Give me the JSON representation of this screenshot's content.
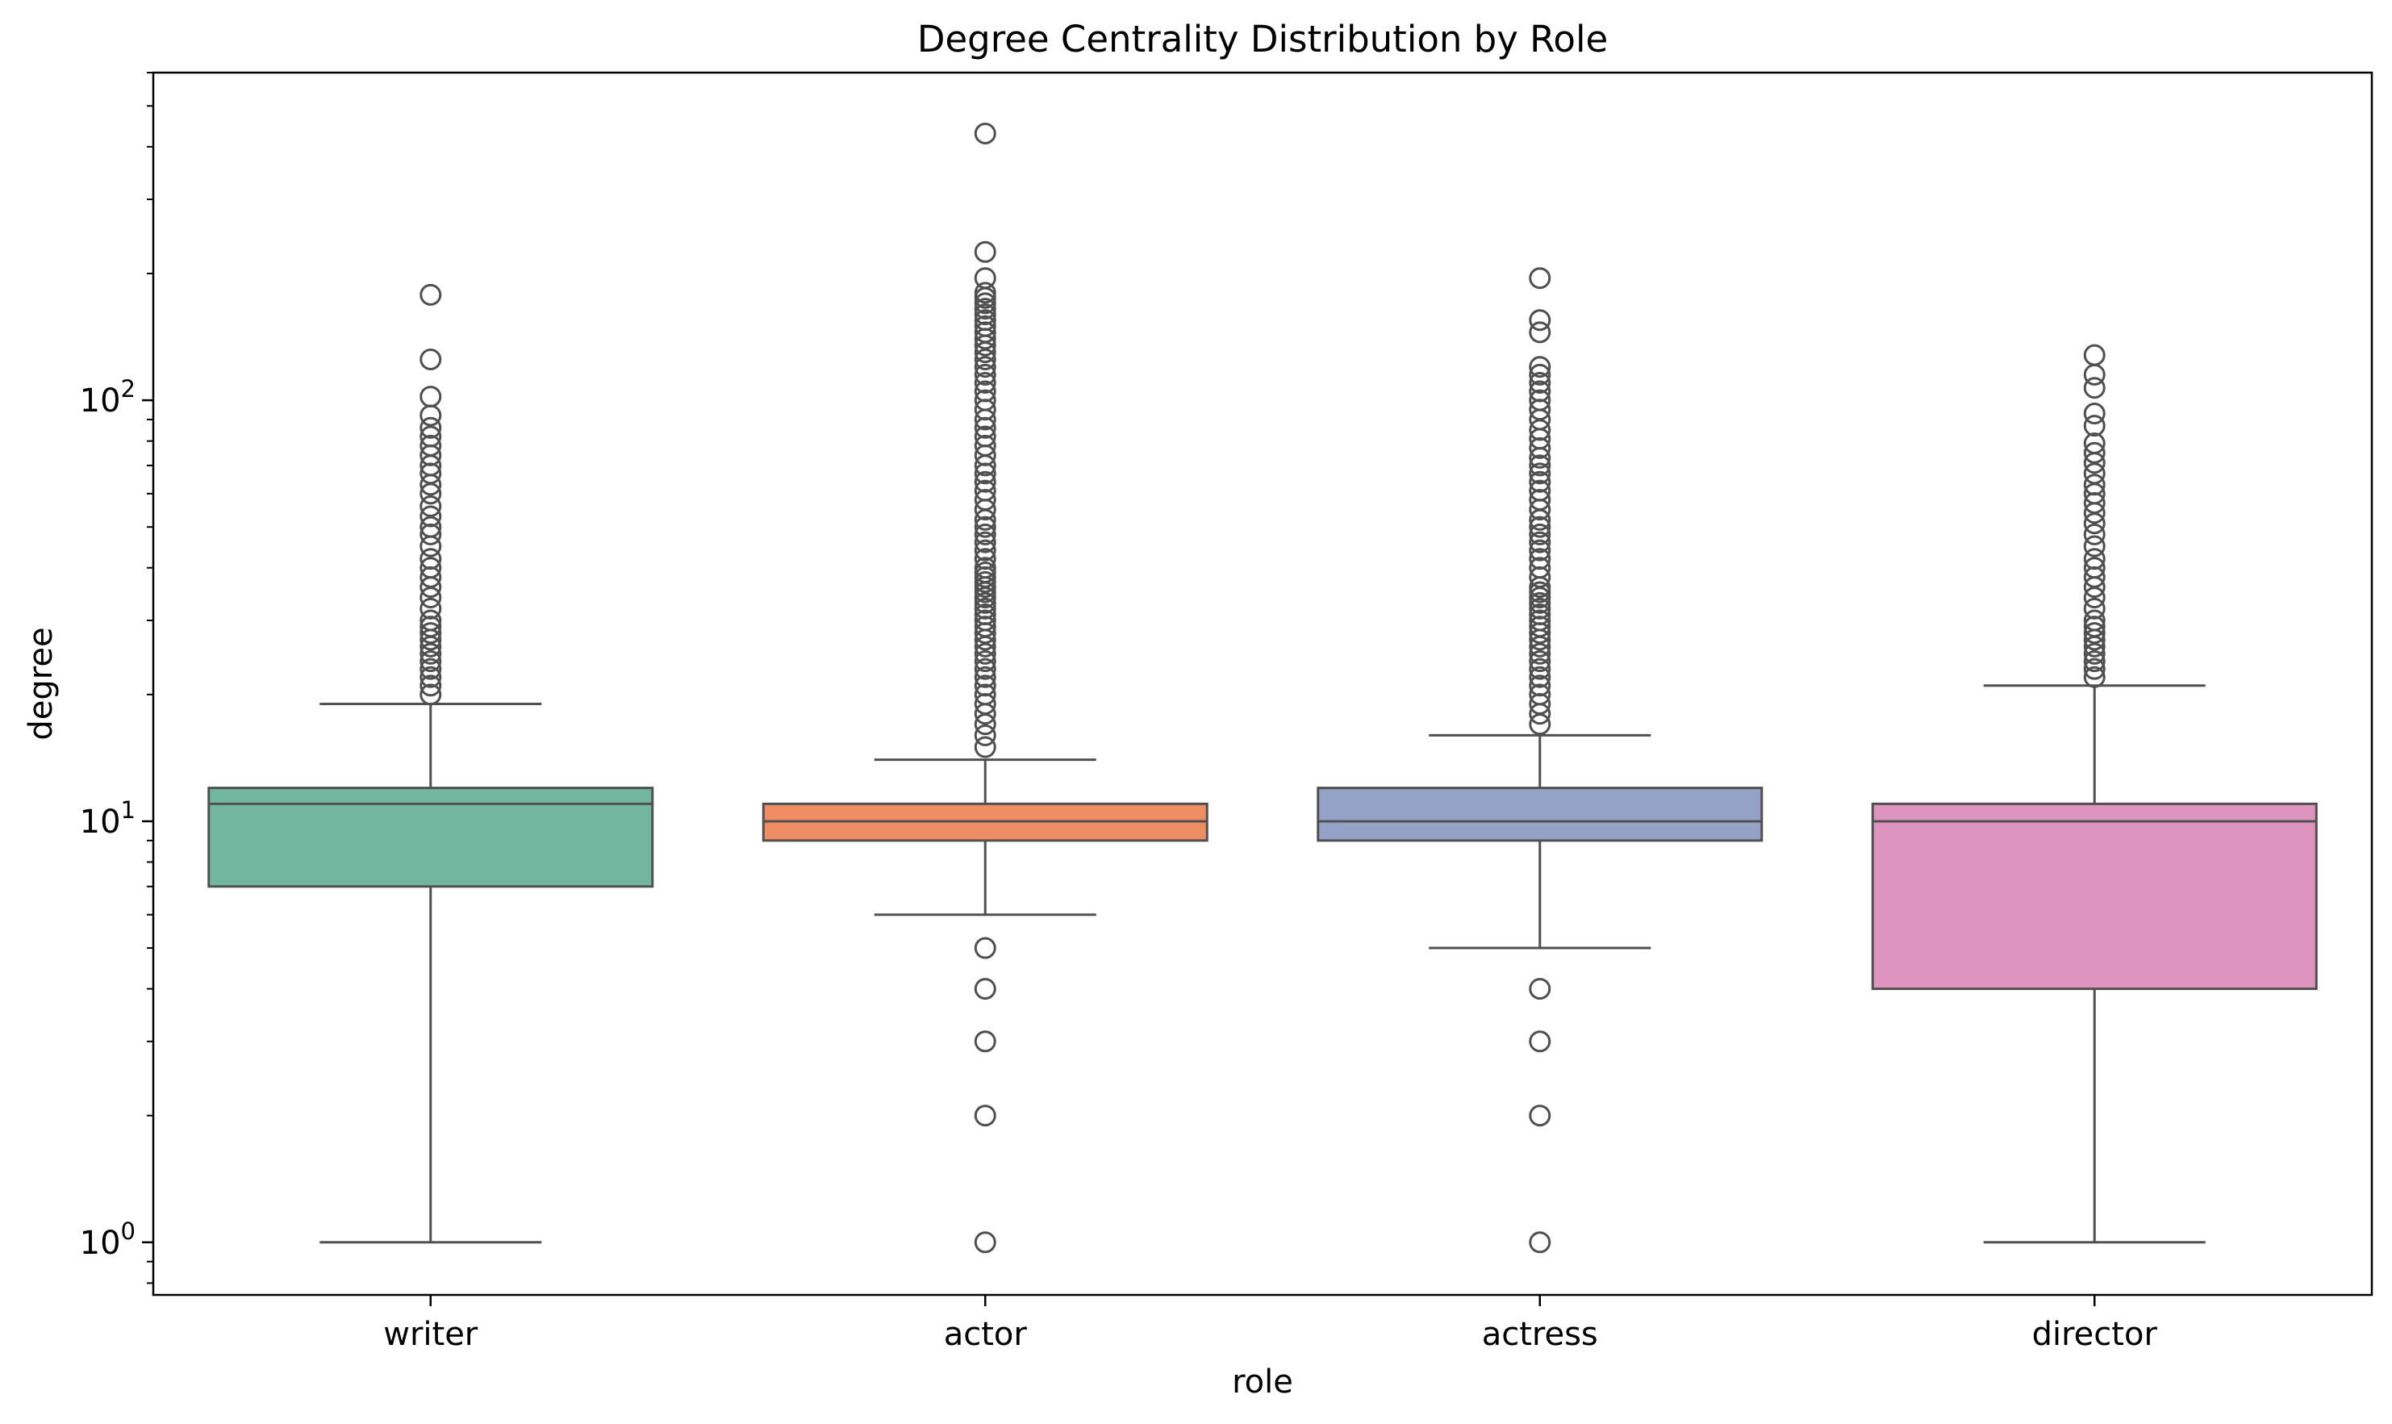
{
  "chart_data": {
    "type": "box",
    "title": "Degree Centrality Distribution by Role",
    "xlabel": "role",
    "ylabel": "degree",
    "yscale": "log",
    "ylim": [
      0.75,
      600
    ],
    "y_major_ticks": [
      {
        "value": 1,
        "base": "10",
        "exp": "0"
      },
      {
        "value": 10,
        "base": "10",
        "exp": "1"
      },
      {
        "value": 100,
        "base": "10",
        "exp": "2"
      }
    ],
    "grid": false,
    "legend": "none",
    "categories": [
      "writer",
      "actor",
      "actress",
      "director"
    ],
    "boxes": [
      {
        "name": "writer",
        "color": "#73b6a0",
        "whisker_low": 1,
        "q1": 7,
        "median": 11,
        "q3": 12,
        "whisker_high": 19,
        "outliers": [
          20,
          21,
          22,
          23,
          24,
          25,
          26,
          27,
          28,
          29,
          30,
          32,
          34,
          36,
          38,
          40,
          42,
          45,
          48,
          50,
          53,
          56,
          60,
          63,
          67,
          70,
          74,
          78,
          82,
          86,
          92,
          102,
          125,
          178
        ]
      },
      {
        "name": "actor",
        "color": "#ee8c63",
        "whisker_low": 6,
        "q1": 9,
        "median": 10,
        "q3": 11,
        "whisker_high": 14,
        "outliers": [
          1,
          2,
          3,
          4,
          5,
          15,
          16,
          17,
          18,
          19,
          20,
          21,
          22,
          23,
          24,
          25,
          26,
          27,
          28,
          29,
          30,
          31,
          32,
          33,
          34,
          35,
          36,
          37,
          38,
          39,
          40,
          42,
          44,
          46,
          48,
          50,
          52,
          55,
          58,
          61,
          64,
          67,
          70,
          74,
          78,
          82,
          86,
          90,
          95,
          100,
          105,
          110,
          115,
          120,
          125,
          130,
          135,
          140,
          145,
          150,
          155,
          160,
          165,
          170,
          175,
          180,
          195,
          225,
          430
        ]
      },
      {
        "name": "actress",
        "color": "#94a2c7",
        "whisker_low": 5,
        "q1": 9,
        "median": 10,
        "q3": 12,
        "whisker_high": 16,
        "outliers": [
          1,
          2,
          3,
          4,
          17,
          18,
          19,
          20,
          21,
          22,
          23,
          24,
          25,
          26,
          27,
          28,
          29,
          30,
          31,
          32,
          33,
          34,
          35,
          36,
          38,
          40,
          42,
          44,
          46,
          48,
          50,
          52,
          55,
          58,
          61,
          64,
          67,
          70,
          73,
          77,
          81,
          85,
          90,
          95,
          100,
          105,
          110,
          115,
          120,
          145,
          155,
          195
        ]
      },
      {
        "name": "director",
        "color": "#dd95c0",
        "whisker_low": 1,
        "q1": 4,
        "median": 10,
        "q3": 11,
        "whisker_high": 21,
        "outliers": [
          22,
          23,
          24,
          25,
          26,
          27,
          28,
          29,
          30,
          32,
          34,
          36,
          38,
          40,
          42,
          45,
          48,
          51,
          54,
          57,
          60,
          63,
          67,
          71,
          75,
          79,
          87,
          93,
          107,
          115,
          128
        ]
      }
    ]
  }
}
